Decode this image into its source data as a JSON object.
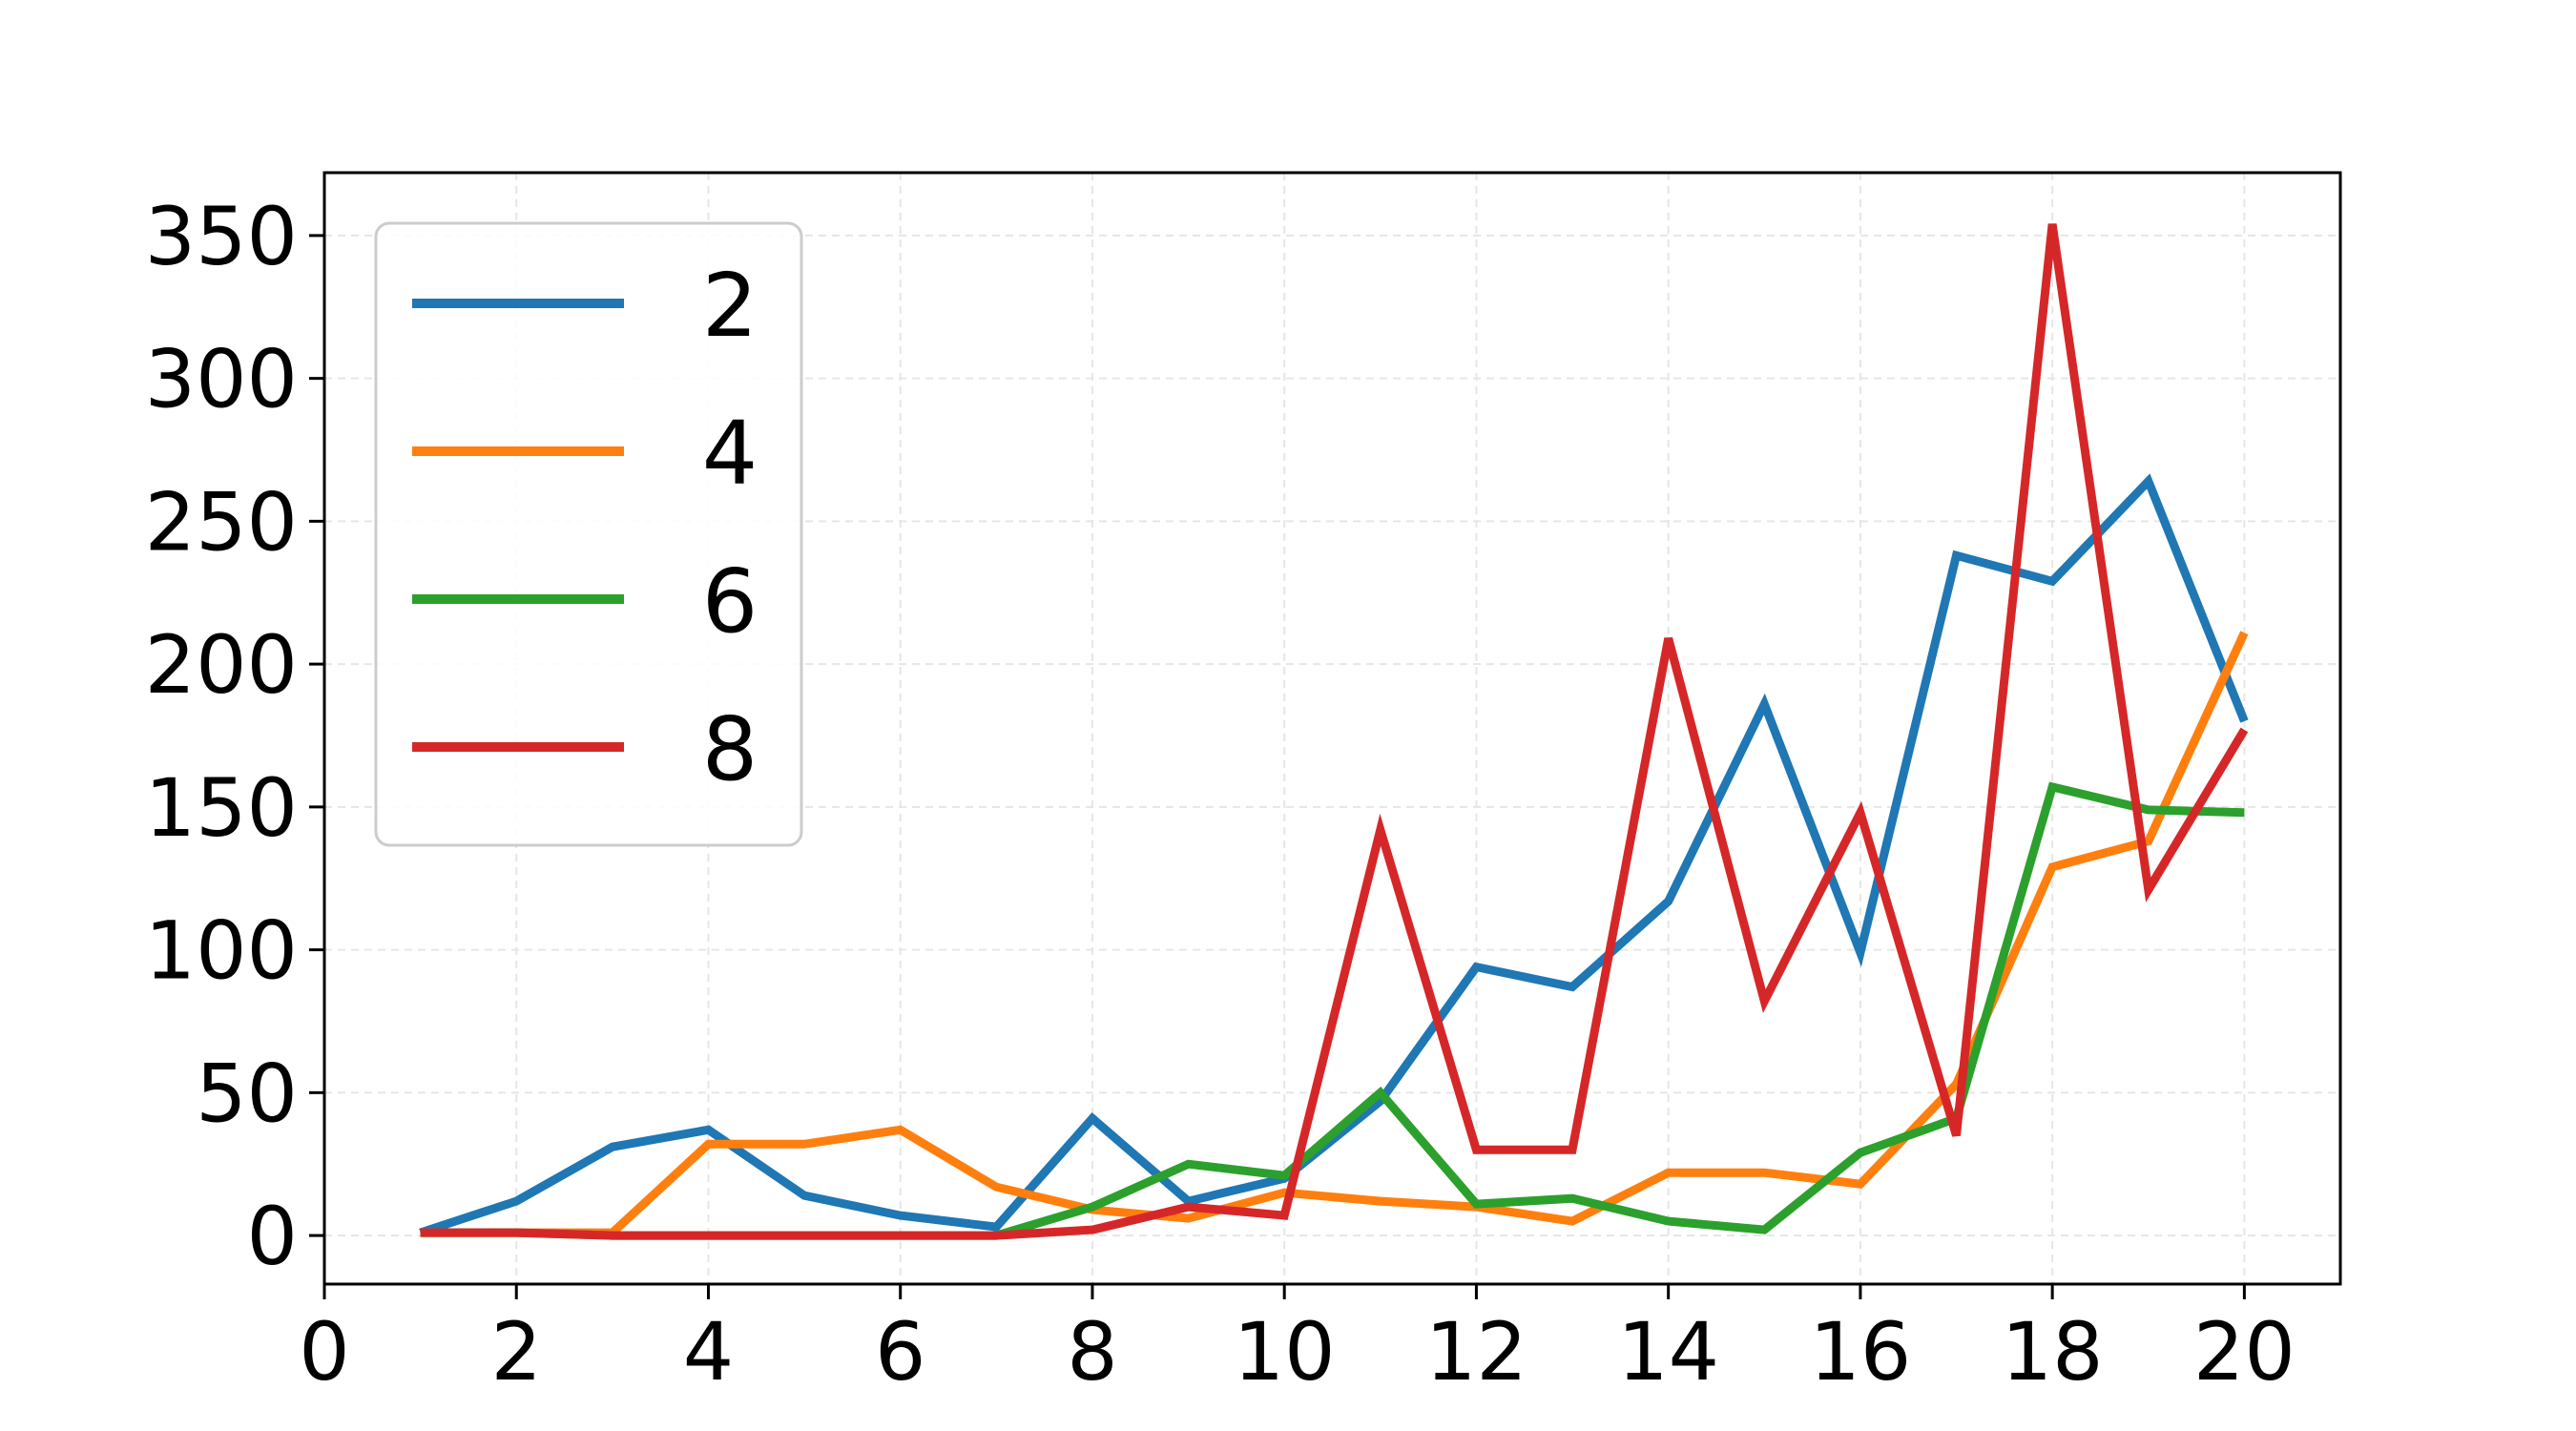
{
  "chart_data": {
    "type": "line",
    "title": "",
    "xlabel": "",
    "ylabel": "",
    "xlim": [
      0,
      21
    ],
    "ylim": [
      -17,
      372
    ],
    "grid": true,
    "legend_position": "top-left",
    "x_ticks": [
      0,
      2,
      4,
      6,
      8,
      10,
      12,
      14,
      16,
      18,
      20
    ],
    "y_ticks": [
      0,
      50,
      100,
      150,
      200,
      250,
      300,
      350
    ],
    "x_tick_labels": [
      "0",
      "2",
      "4",
      "6",
      "8",
      "10",
      "12",
      "14",
      "16",
      "18",
      "20"
    ],
    "y_tick_labels": [
      "0",
      "50",
      "100",
      "150",
      "200",
      "250",
      "300",
      "350"
    ],
    "x": [
      1,
      2,
      3,
      4,
      5,
      6,
      7,
      8,
      9,
      10,
      11,
      12,
      13,
      14,
      15,
      16,
      17,
      18,
      19,
      20
    ],
    "series": [
      {
        "name": "2",
        "color": "#1f77b4",
        "values": [
          1,
          12,
          31,
          37,
          14,
          7,
          3,
          41,
          12,
          20,
          47,
          94,
          87,
          117,
          186,
          99,
          238,
          229,
          264,
          180
        ]
      },
      {
        "name": "4",
        "color": "#ff7f0e",
        "values": [
          1,
          1,
          1,
          32,
          32,
          37,
          17,
          9,
          6,
          15,
          12,
          10,
          5,
          22,
          22,
          18,
          53,
          129,
          138,
          211
        ]
      },
      {
        "name": "6",
        "color": "#2ca02c",
        "values": [
          1,
          1,
          0,
          0,
          0,
          0,
          0,
          10,
          25,
          21,
          50,
          11,
          13,
          5,
          2,
          29,
          41,
          157,
          149,
          148
        ]
      },
      {
        "name": "8",
        "color": "#d62728",
        "values": [
          1,
          1,
          0,
          0,
          0,
          0,
          0,
          2,
          10,
          7,
          142,
          30,
          30,
          209,
          82,
          148,
          35,
          354,
          121,
          177
        ]
      }
    ]
  }
}
